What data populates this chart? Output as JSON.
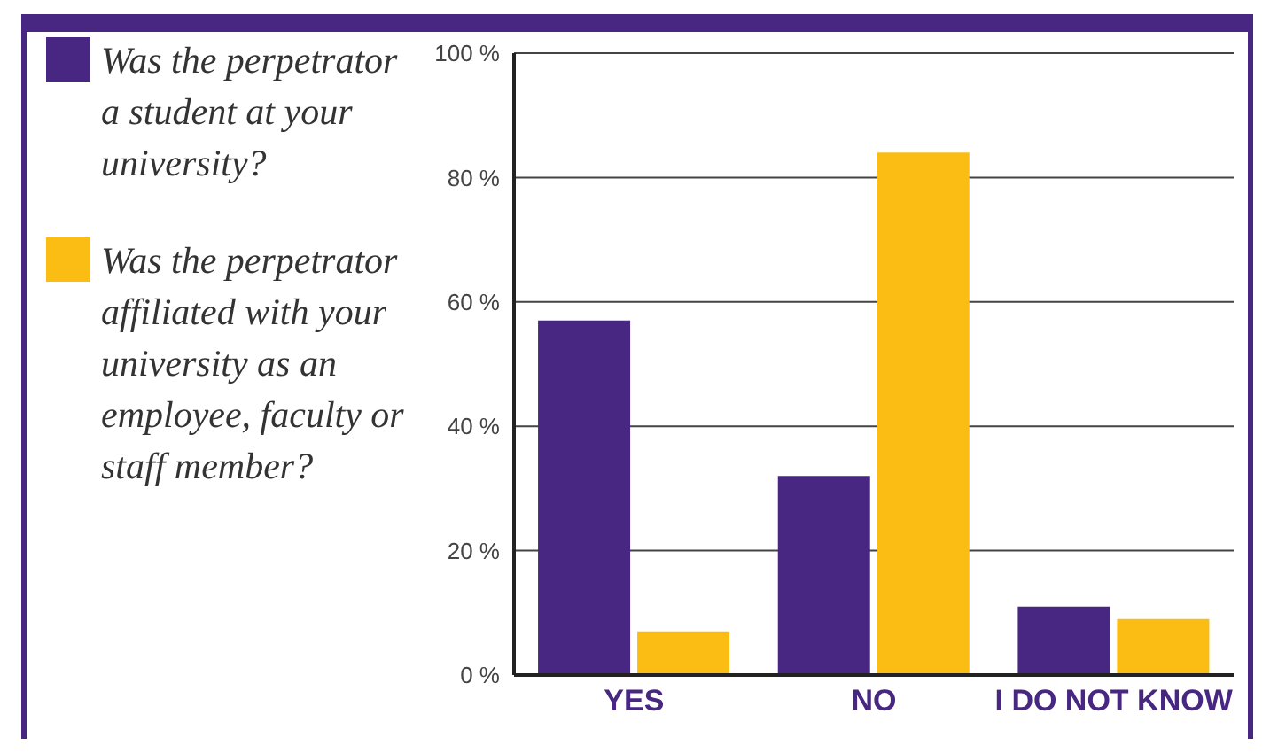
{
  "chart_data": {
    "type": "bar",
    "categories": [
      "YES",
      "NO",
      "I DO NOT KNOW"
    ],
    "series": [
      {
        "name": "Was the perpetrator a student at your university?",
        "color": "#472781",
        "values": [
          57,
          32,
          11
        ]
      },
      {
        "name": "Was the perpetrator affiliated with your university as an employee, faculty or staff member?",
        "color": "#fbbd14",
        "values": [
          7,
          84,
          9
        ]
      }
    ],
    "ylim": [
      0,
      100
    ],
    "yticks": [
      {
        "value": 0,
        "label": "0 %"
      },
      {
        "value": 20,
        "label": "20 %"
      },
      {
        "value": 40,
        "label": "40 %"
      },
      {
        "value": 60,
        "label": "60 %"
      },
      {
        "value": 80,
        "label": "80 %"
      },
      {
        "value": 100,
        "label": "100 %"
      }
    ],
    "grid": "y",
    "legend": "left"
  }
}
